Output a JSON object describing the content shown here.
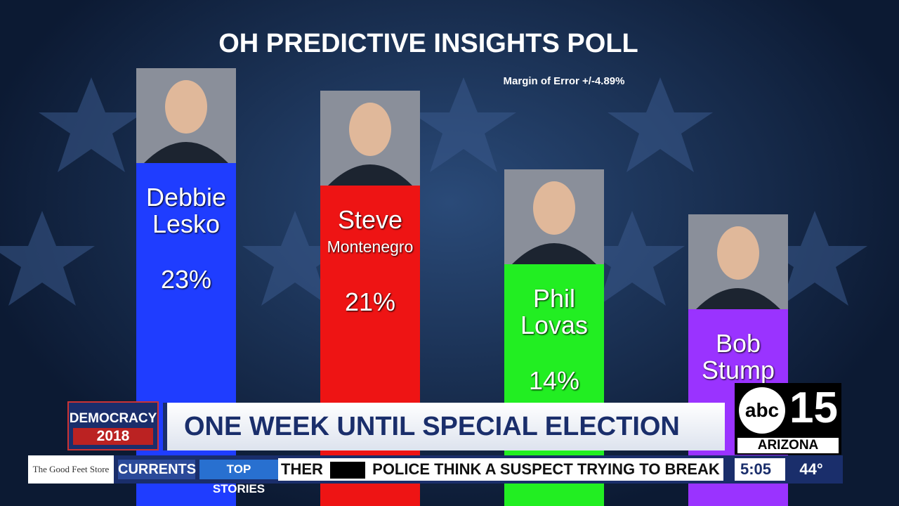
{
  "chart_data": {
    "type": "bar",
    "title": "OH PREDICTIVE INSIGHTS POLL",
    "subtitle": "Margin of Error +/-4.89%",
    "categories": [
      "Debbie Lesko",
      "Steve Montenegro",
      "Phil Lovas",
      "Bob Stump"
    ],
    "values": [
      23,
      21,
      14,
      10
    ],
    "value_labels": [
      "23%",
      "21%",
      "14%",
      null
    ],
    "colors": [
      "#1f3dff",
      "#ee1414",
      "#22ee22",
      "#9a33ff"
    ],
    "ylim": [
      0,
      37.5
    ]
  },
  "banner": {
    "tag_top": "DEMOCRACY",
    "tag_bottom": "2018",
    "headline": "ONE WEEK UNTIL SPECIAL ELECTION"
  },
  "logo": {
    "network": "abc",
    "channel": "15",
    "region": "ARIZONA"
  },
  "ticker": {
    "sponsor": "The Good Feet Store",
    "section": "CURRENTS",
    "tab": "TOP STORIES",
    "story_tail": "THER",
    "story": "POLICE THINK A SUSPECT TRYING TO BREAK INTO A",
    "time": "5:05",
    "temp": "44°"
  }
}
